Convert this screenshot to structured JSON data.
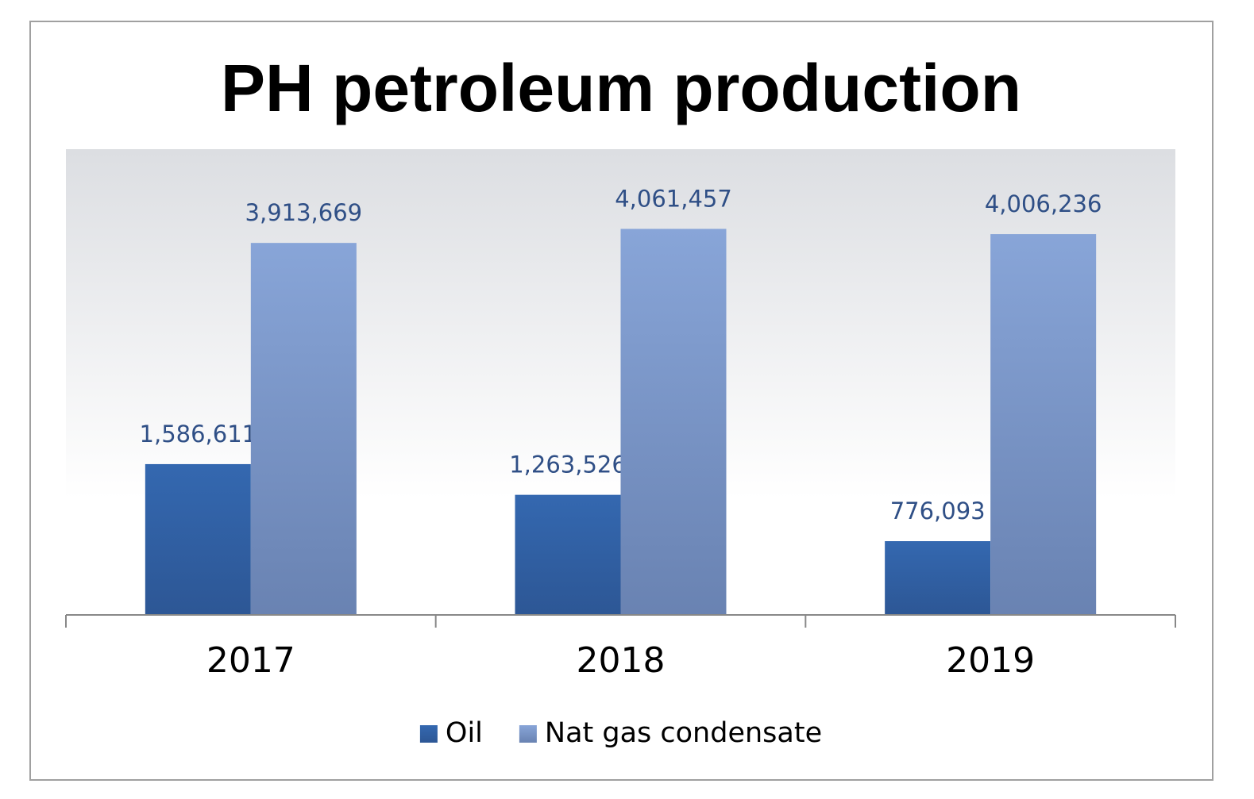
{
  "chart_data": {
    "type": "bar",
    "title": "PH petroleum production",
    "categories": [
      "2017",
      "2018",
      "2019"
    ],
    "series": [
      {
        "name": "Oil",
        "color": "#3468b0",
        "values": [
          1586611,
          1263526,
          776093
        ],
        "value_labels": [
          "1,586,611",
          "1,263,526",
          "776,093"
        ]
      },
      {
        "name": "Nat gas condensate",
        "color": "#88a5d8",
        "values": [
          3913669,
          4061457,
          4006236
        ],
        "value_labels": [
          "3,913,669",
          "4,061,457",
          "4,006,236"
        ]
      }
    ],
    "ylim": [
      0,
      4900000
    ],
    "legend": "bottom"
  }
}
